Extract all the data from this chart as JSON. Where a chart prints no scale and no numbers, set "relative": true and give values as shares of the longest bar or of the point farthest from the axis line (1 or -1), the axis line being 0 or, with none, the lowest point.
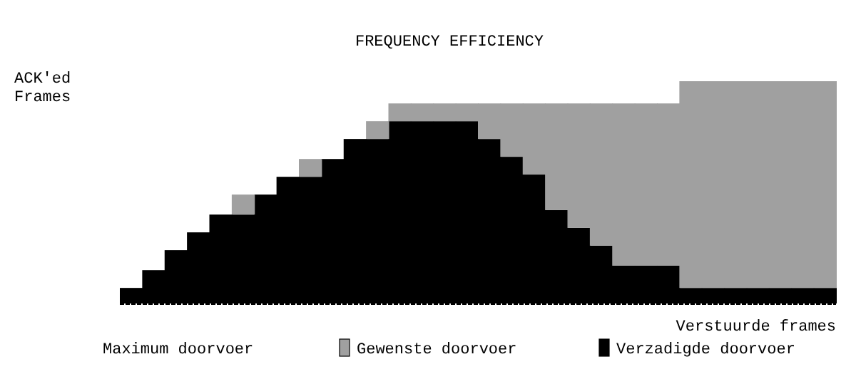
{
  "chart_data": {
    "type": "bar",
    "title": "FREQUENCY EFFICIENCY",
    "xlabel": "Verstuurde frames",
    "ylabel": "ACK'ed Frames",
    "relative": true,
    "stacked": true,
    "legend": "bottom",
    "grid": false,
    "annotations": [
      "Maximum doorvoer"
    ],
    "categories": [
      null,
      null,
      null,
      null,
      null,
      null,
      null,
      null,
      null,
      null,
      null,
      null,
      null,
      null,
      null,
      null,
      null,
      null,
      null,
      null,
      null,
      null,
      null,
      null,
      null,
      null,
      null,
      null,
      null,
      null,
      null,
      null
    ],
    "series": [
      {
        "name": "Verzadigde doorvoer",
        "color": "#000000",
        "values": [
          0.07,
          0.15,
          0.24,
          0.32,
          0.4,
          0.4,
          0.49,
          0.57,
          0.57,
          0.65,
          0.74,
          0.74,
          0.82,
          0.82,
          0.82,
          0.82,
          0.74,
          0.66,
          0.58,
          0.42,
          0.34,
          0.26,
          0.17,
          0.17,
          0.17,
          0.07,
          0.07,
          0.07,
          0.07,
          0.07,
          0.07,
          0.07
        ]
      },
      {
        "name": "Gewenste doorvoer",
        "color": "#a0a0a0",
        "values": [
          0,
          0,
          0,
          0,
          0,
          0.09,
          0,
          0,
          0.08,
          0,
          0,
          0.08,
          0.08,
          0.08,
          0.08,
          0.08,
          0.16,
          0.24,
          0.32,
          0.48,
          0.56,
          0.64,
          0.73,
          0.73,
          0.73,
          0.93,
          0.93,
          0.93,
          0.93,
          0.93,
          0.93,
          0.93
        ]
      }
    ]
  }
}
